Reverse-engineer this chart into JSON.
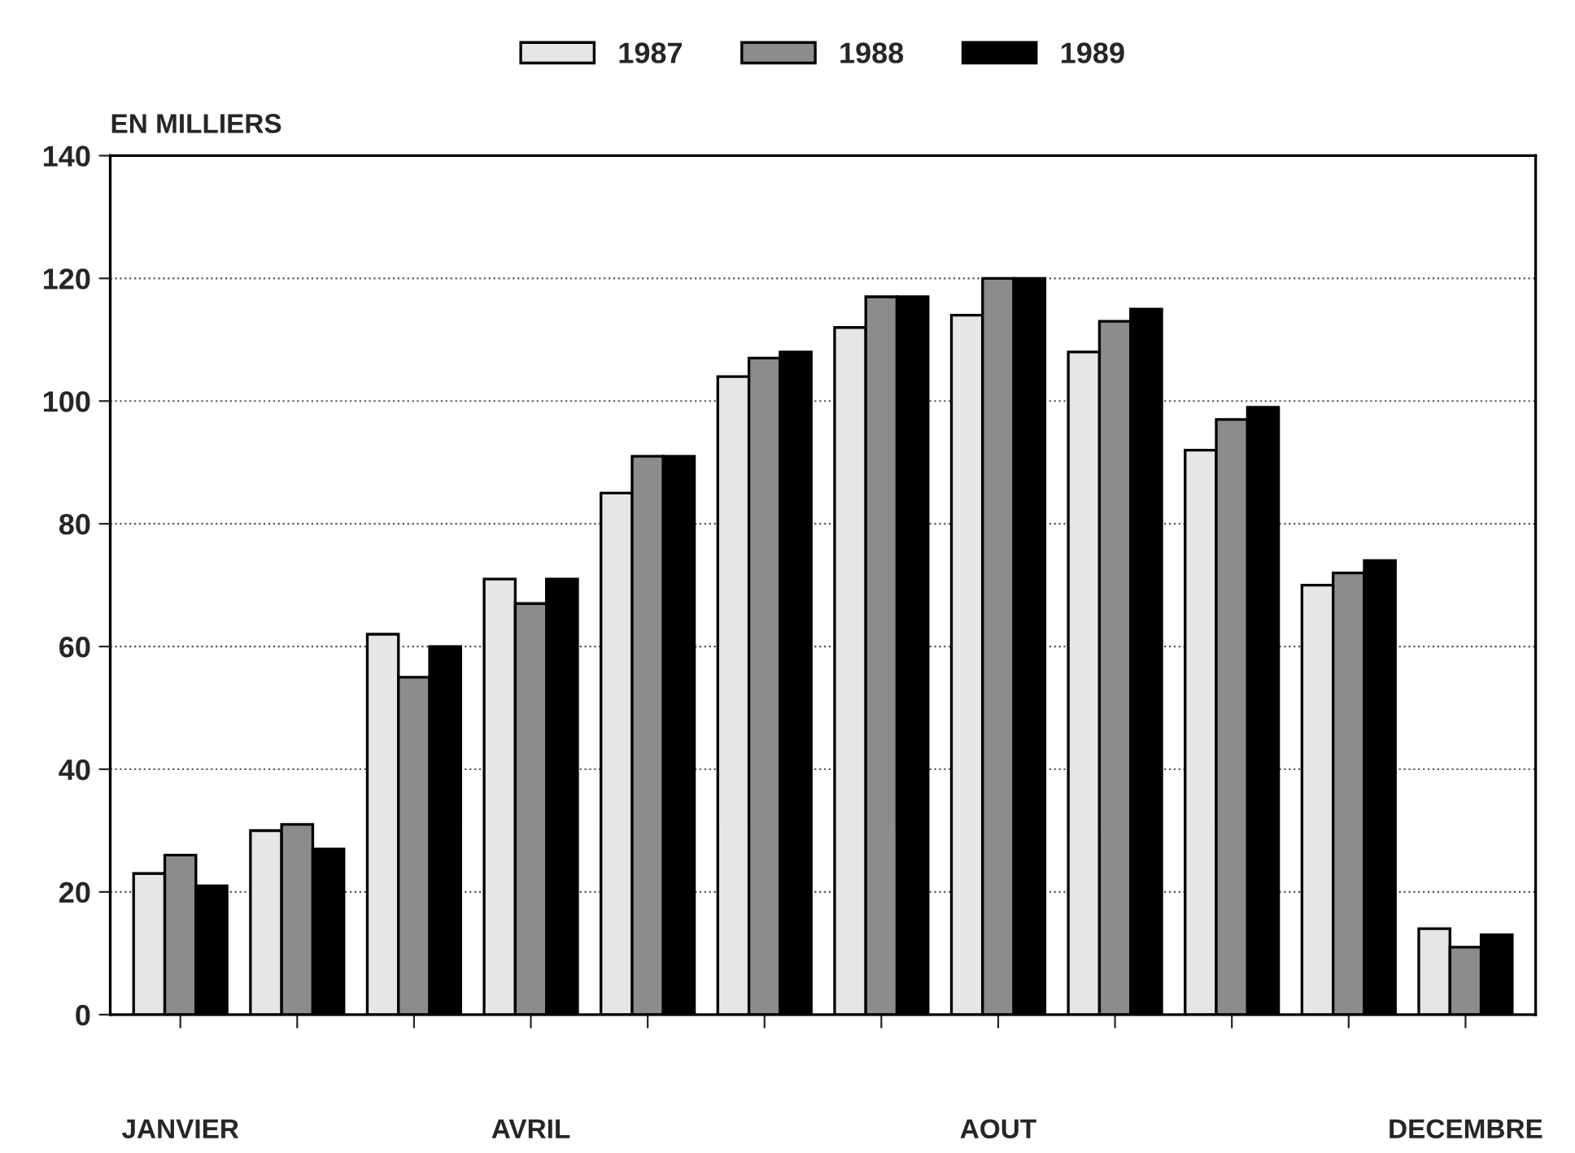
{
  "chart_data": {
    "type": "bar",
    "ylabel": "EN MILLIERS",
    "categories": [
      "JANVIER",
      null,
      null,
      "AVRIL",
      null,
      null,
      null,
      "AOUT",
      null,
      null,
      null,
      "DECEMBRE"
    ],
    "series": [
      {
        "name": "1987",
        "color": "#e6e6e6",
        "values": [
          23,
          30,
          62,
          71,
          85,
          104,
          112,
          114,
          108,
          92,
          70,
          14
        ]
      },
      {
        "name": "1988",
        "color": "#8c8c8c",
        "values": [
          26,
          31,
          55,
          67,
          91,
          107,
          117,
          120,
          113,
          97,
          72,
          11
        ]
      },
      {
        "name": "1989",
        "color": "#000000",
        "values": [
          21,
          27,
          60,
          71,
          91,
          108,
          117,
          120,
          115,
          99,
          74,
          13
        ]
      }
    ],
    "ylim": [
      0,
      140
    ],
    "yticks": [
      0,
      20,
      40,
      60,
      80,
      100,
      120,
      140
    ],
    "grid": "y",
    "legend": "top"
  }
}
